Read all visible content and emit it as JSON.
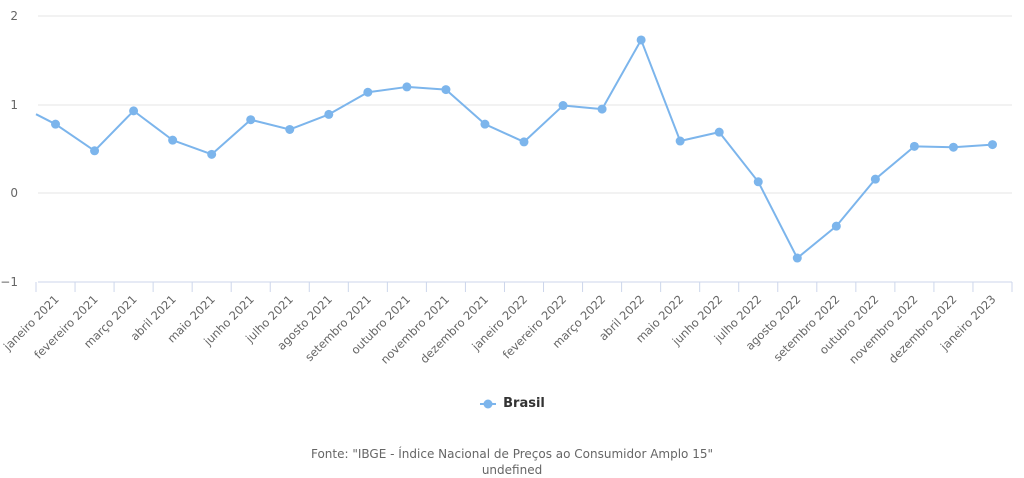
{
  "chart_data": {
    "type": "line",
    "categories": [
      "janeiro 2021",
      "fevereiro 2021",
      "março 2021",
      "abril 2021",
      "maio 2021",
      "junho 2021",
      "julho 2021",
      "agosto 2021",
      "setembro 2021",
      "outubro 2021",
      "novembro 2021",
      "dezembro 2021",
      "janeiro 2022",
      "fevereiro 2022",
      "março 2022",
      "abril 2022",
      "maio 2022",
      "junho 2022",
      "julho 2022",
      "agosto 2022",
      "setembro 2022",
      "outubro 2022",
      "novembro 2022",
      "dezembro 2022",
      "janeiro 2023"
    ],
    "series": [
      {
        "name": "Brasil",
        "color": "#7cb5ec",
        "values": [
          0.78,
          0.48,
          0.93,
          0.6,
          0.44,
          0.83,
          0.72,
          0.89,
          1.14,
          1.2,
          1.17,
          0.78,
          0.58,
          0.99,
          0.95,
          1.73,
          0.59,
          0.69,
          0.13,
          -0.73,
          -0.37,
          0.16,
          0.53,
          0.52,
          0.55
        ]
      }
    ],
    "ylim": [
      -1,
      2
    ],
    "yticks": [
      "2",
      "1",
      "0",
      "−1"
    ],
    "grid": true,
    "legend_position": "bottom-center"
  },
  "legend": {
    "label": "Brasil"
  },
  "source": {
    "line1": "Fonte: \"IBGE - Índice Nacional de Preços ao Consumidor Amplo 15\"",
    "line2": "undefined"
  }
}
